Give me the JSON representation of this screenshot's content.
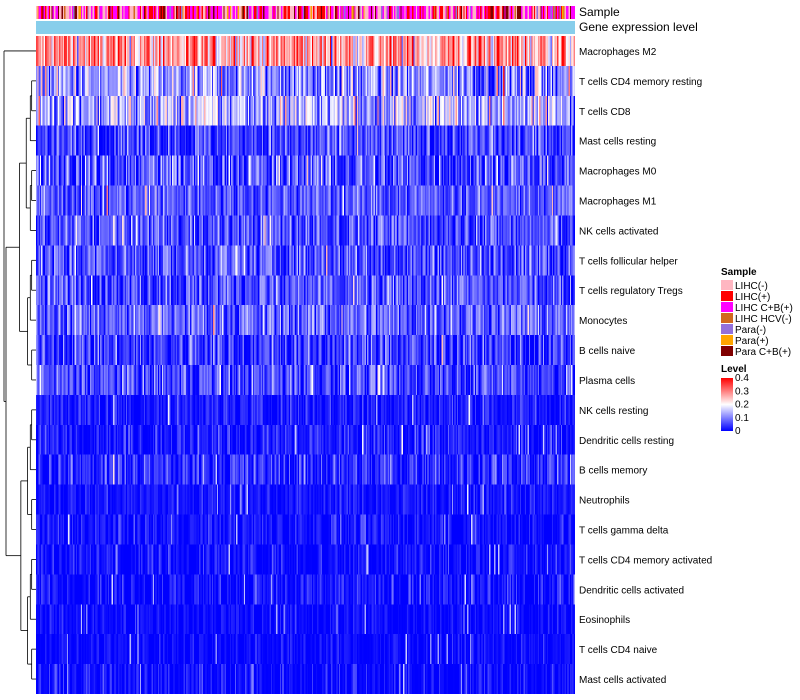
{
  "chart_data": {
    "type": "heatmap",
    "annotation_tracks": [
      "Sample",
      "Gene expression level"
    ],
    "rows": [
      {
        "name": "Macrophages M2",
        "mean": 0.27,
        "sd": 0.08
      },
      {
        "name": "T cells CD4 memory resting",
        "mean": 0.11,
        "sd": 0.07
      },
      {
        "name": "T cells CD8",
        "mean": 0.14,
        "sd": 0.07
      },
      {
        "name": "Mast cells resting",
        "mean": 0.05,
        "sd": 0.05
      },
      {
        "name": "Macrophages M0",
        "mean": 0.06,
        "sd": 0.07
      },
      {
        "name": "Macrophages M1",
        "mean": 0.07,
        "sd": 0.04
      },
      {
        "name": "NK cells activated",
        "mean": 0.06,
        "sd": 0.05
      },
      {
        "name": "T cells follicular helper",
        "mean": 0.06,
        "sd": 0.05
      },
      {
        "name": "T cells regulatory  Tregs",
        "mean": 0.06,
        "sd": 0.05
      },
      {
        "name": "Monocytes",
        "mean": 0.08,
        "sd": 0.05
      },
      {
        "name": "B cells naive",
        "mean": 0.04,
        "sd": 0.05
      },
      {
        "name": "Plasma cells",
        "mean": 0.05,
        "sd": 0.05
      },
      {
        "name": "NK cells resting",
        "mean": 0.02,
        "sd": 0.03
      },
      {
        "name": "Dendritic cells resting",
        "mean": 0.02,
        "sd": 0.03
      },
      {
        "name": "B cells memory",
        "mean": 0.03,
        "sd": 0.04
      },
      {
        "name": "Neutrophils",
        "mean": 0.015,
        "sd": 0.02
      },
      {
        "name": "T cells gamma delta",
        "mean": 0.01,
        "sd": 0.03
      },
      {
        "name": "T cells CD4 memory activated",
        "mean": 0.01,
        "sd": 0.03
      },
      {
        "name": "Dendritic cells activated",
        "mean": 0.01,
        "sd": 0.03
      },
      {
        "name": "Eosinophils",
        "mean": 0.005,
        "sd": 0.02
      },
      {
        "name": "T cells CD4 naive",
        "mean": 0.005,
        "sd": 0.02
      },
      {
        "name": "Mast cells activated",
        "mean": 0.005,
        "sd": 0.03
      }
    ],
    "n_samples": 420,
    "sample_legend": {
      "title": "Sample",
      "items": [
        {
          "label": "LIHC(-)",
          "color": "#FFB6C1"
        },
        {
          "label": "LIHC(+)",
          "color": "#FF0000"
        },
        {
          "label": "LIHC C+B(+)",
          "color": "#FF00FF"
        },
        {
          "label": "LIHC HCV(-)",
          "color": "#D2691E"
        },
        {
          "label": "Para(-)",
          "color": "#9370DB"
        },
        {
          "label": "Para(+)",
          "color": "#FFA500"
        },
        {
          "label": "Para C+B(+)",
          "color": "#800000"
        }
      ],
      "proportions": [
        0.28,
        0.18,
        0.32,
        0.03,
        0.06,
        0.03,
        0.1
      ]
    },
    "gene_expression_level_color": "#87CEEB",
    "level_legend": {
      "title": "Level",
      "ticks": [
        "0.4",
        "0.3",
        "0.2",
        "0.1",
        "0"
      ],
      "range": [
        0,
        0.4
      ],
      "colors": [
        "#0000FF",
        "#FFFFFF",
        "#FF0000"
      ]
    }
  }
}
